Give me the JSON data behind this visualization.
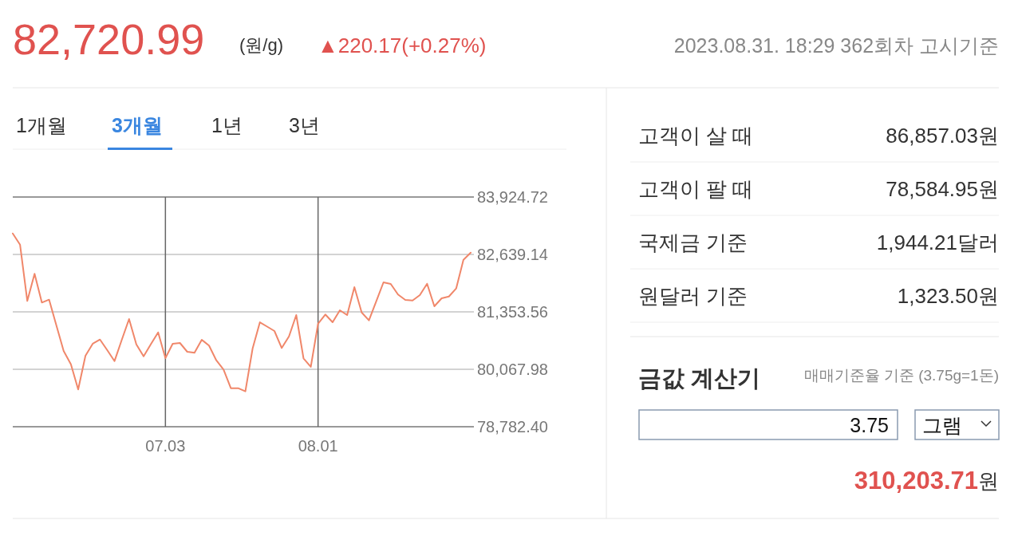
{
  "chart_data": [
    {
      "type": "other",
      "title": "82,720.99",
      "annotations": [
        "(원/g)",
        "▲220.17(+0.27%)",
        "2023.08.31. 18:29 362회차 고시기준"
      ]
    },
    {
      "type": "line",
      "annotations": [
        "1개월",
        "3개월",
        "1년",
        "3년"
      ],
      "categories": [
        null,
        null,
        null,
        null,
        null,
        null,
        null,
        null,
        null,
        null,
        null,
        null,
        null,
        null,
        null,
        null,
        null,
        null,
        null,
        null,
        null,
        "07.03",
        null,
        null,
        null,
        null,
        null,
        null,
        null,
        null,
        null,
        null,
        null,
        null,
        null,
        null,
        null,
        null,
        null,
        null,
        null,
        null,
        "08.01",
        null,
        null,
        null,
        null,
        null,
        null,
        null,
        null,
        null,
        null,
        null,
        null,
        null,
        null,
        null,
        null,
        null,
        null,
        null,
        null,
        null
      ],
      "series": [
        {
          "color": "#f0876a",
          "values": [
            83109,
            82859,
            81598,
            82205,
            81562,
            81627,
            81050,
            80479,
            80180,
            79616,
            80372,
            80640,
            80734,
            80496,
            80252,
            80729,
            81193,
            80627,
            80359,
            80630,
            80895,
            80318,
            80640,
            80657,
            80461,
            80438,
            80729,
            80598,
            80270,
            80063,
            79645,
            79645,
            79574,
            80537,
            81121,
            81023,
            80925,
            80545,
            80805,
            81282,
            80313,
            80122,
            81086,
            81295,
            81121,
            81389,
            81282,
            81907,
            81341,
            81163,
            81586,
            82014,
            81979,
            81741,
            81621,
            81609,
            81728,
            81984,
            81479,
            81657,
            81698,
            81877,
            82520,
            82680
          ]
        }
      ],
      "ylim": [
        78782.4,
        83924.72
      ],
      "yticks": [
        {
          "value": 78782.4,
          "label": "78,782.40"
        },
        {
          "value": 80067.98,
          "label": "80,067.98"
        },
        {
          "value": 81353.56,
          "label": "81,353.56"
        },
        {
          "value": 82639.14,
          "label": "82,639.14"
        },
        {
          "value": 83924.72,
          "label": "83,924.72"
        }
      ],
      "grid": true
    },
    {
      "type": "other",
      "title": "금값 계산기",
      "subtitle": "매매기준율 기준 (3.75g=1돈)",
      "annotations": [
        "고객이 살 때",
        "86,857.03원",
        "고객이 팔 때",
        "78,584.95원",
        "국제금 기준",
        "1,944.21달러",
        "원달러 기준",
        "1,323.50원",
        "3.75",
        "그램",
        "310,203.71",
        "원"
      ]
    }
  ]
}
